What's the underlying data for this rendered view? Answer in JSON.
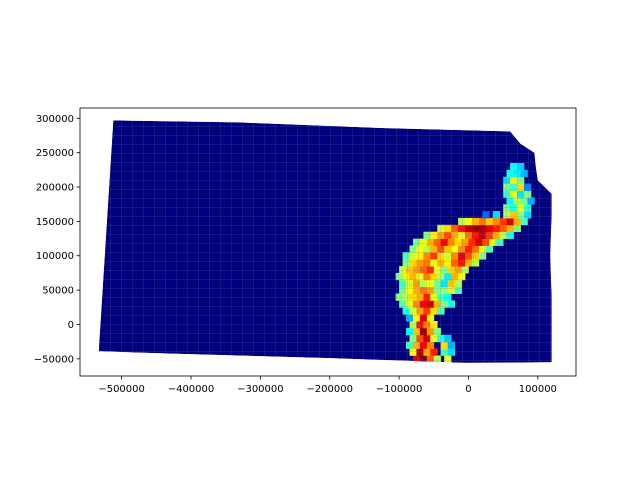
{
  "chart_data": {
    "type": "heatmap",
    "subject": "choropleth map of a state subdivided into a fine grid of polygons",
    "x_ticks": [
      "−500000",
      "−400000",
      "−300000",
      "−200000",
      "−100000",
      "0",
      "100000"
    ],
    "y_ticks": [
      "300000",
      "250000",
      "200000",
      "150000",
      "100000",
      "50000",
      "0",
      "−50000"
    ],
    "x_tick_values": [
      -500000,
      -400000,
      -300000,
      -200000,
      -100000,
      0,
      100000
    ],
    "y_tick_values": [
      300000,
      250000,
      200000,
      150000,
      100000,
      50000,
      0,
      -50000
    ],
    "xlim": [
      -560000,
      155000
    ],
    "ylim": [
      -75000,
      315000
    ],
    "colormap": "jet",
    "background_color": "#00007f",
    "boundary_color": "#6a6fc4",
    "outline": [
      [
        -512000,
        297000
      ],
      [
        -330000,
        294000
      ],
      [
        -130000,
        286000
      ],
      [
        60000,
        281000
      ],
      [
        75000,
        263000
      ],
      [
        95000,
        250000
      ],
      [
        97000,
        230000
      ],
      [
        100000,
        210000
      ],
      [
        120000,
        190000
      ],
      [
        120000,
        160000
      ],
      [
        118000,
        100000
      ],
      [
        120000,
        40000
      ],
      [
        120000,
        -55000
      ],
      [
        -5000,
        -56000
      ],
      [
        -200000,
        -49000
      ],
      [
        -410000,
        -43000
      ],
      [
        -533000,
        -39000
      ]
    ],
    "hot_cells": [
      {
        "x": -75000,
        "y": -50000,
        "v": 0.9
      },
      {
        "x": -65000,
        "y": -50000,
        "v": 1.0
      },
      {
        "x": -55000,
        "y": -50000,
        "v": 0.78
      },
      {
        "x": -45000,
        "y": -50000,
        "v": 0.55
      },
      {
        "x": -30000,
        "y": -50000,
        "v": 0.6
      },
      {
        "x": -80000,
        "y": -40000,
        "v": 0.62
      },
      {
        "x": -70000,
        "y": -40000,
        "v": 0.95
      },
      {
        "x": -60000,
        "y": -40000,
        "v": 0.7
      },
      {
        "x": -50000,
        "y": -40000,
        "v": 0.85
      },
      {
        "x": -35000,
        "y": -40000,
        "v": 0.45
      },
      {
        "x": -25000,
        "y": -40000,
        "v": 0.35
      },
      {
        "x": -85000,
        "y": -30000,
        "v": 0.45
      },
      {
        "x": -75000,
        "y": -30000,
        "v": 0.7
      },
      {
        "x": -65000,
        "y": -30000,
        "v": 0.88
      },
      {
        "x": -55000,
        "y": -30000,
        "v": 0.74
      },
      {
        "x": -35000,
        "y": -30000,
        "v": 0.66
      },
      {
        "x": -25000,
        "y": -30000,
        "v": 0.3
      },
      {
        "x": -80000,
        "y": -20000,
        "v": 0.5
      },
      {
        "x": -70000,
        "y": -20000,
        "v": 0.8
      },
      {
        "x": -60000,
        "y": -20000,
        "v": 0.92
      },
      {
        "x": -50000,
        "y": -20000,
        "v": 0.6
      },
      {
        "x": -40000,
        "y": -20000,
        "v": 0.4
      },
      {
        "x": -30000,
        "y": -20000,
        "v": 0.32
      },
      {
        "x": -85000,
        "y": -10000,
        "v": 0.38
      },
      {
        "x": -75000,
        "y": -10000,
        "v": 0.68
      },
      {
        "x": -65000,
        "y": -10000,
        "v": 0.97
      },
      {
        "x": -55000,
        "y": -10000,
        "v": 0.72
      },
      {
        "x": -45000,
        "y": -10000,
        "v": 0.5
      },
      {
        "x": -80000,
        "y": 0,
        "v": 0.55
      },
      {
        "x": -70000,
        "y": 0,
        "v": 0.86
      },
      {
        "x": -60000,
        "y": 0,
        "v": 0.75
      },
      {
        "x": -50000,
        "y": 0,
        "v": 0.64
      },
      {
        "x": -85000,
        "y": 10000,
        "v": 0.3
      },
      {
        "x": -75000,
        "y": 10000,
        "v": 0.62
      },
      {
        "x": -65000,
        "y": 10000,
        "v": 0.9
      },
      {
        "x": -55000,
        "y": 10000,
        "v": 0.6
      },
      {
        "x": -90000,
        "y": 20000,
        "v": 0.4
      },
      {
        "x": -80000,
        "y": 20000,
        "v": 0.58
      },
      {
        "x": -70000,
        "y": 20000,
        "v": 0.72
      },
      {
        "x": -60000,
        "y": 20000,
        "v": 0.82
      },
      {
        "x": -50000,
        "y": 20000,
        "v": 0.66
      },
      {
        "x": -40000,
        "y": 20000,
        "v": 0.45
      },
      {
        "x": -95000,
        "y": 30000,
        "v": 0.45
      },
      {
        "x": -85000,
        "y": 30000,
        "v": 0.6
      },
      {
        "x": -75000,
        "y": 30000,
        "v": 0.74
      },
      {
        "x": -65000,
        "y": 30000,
        "v": 0.88
      },
      {
        "x": -55000,
        "y": 30000,
        "v": 0.92
      },
      {
        "x": -45000,
        "y": 30000,
        "v": 0.7
      },
      {
        "x": -35000,
        "y": 30000,
        "v": 0.5
      },
      {
        "x": -25000,
        "y": 30000,
        "v": 0.4
      },
      {
        "x": -100000,
        "y": 40000,
        "v": 0.5
      },
      {
        "x": -90000,
        "y": 40000,
        "v": 0.55
      },
      {
        "x": -80000,
        "y": 40000,
        "v": 0.66
      },
      {
        "x": -70000,
        "y": 40000,
        "v": 0.7
      },
      {
        "x": -60000,
        "y": 40000,
        "v": 0.85
      },
      {
        "x": -50000,
        "y": 40000,
        "v": 0.6
      },
      {
        "x": -40000,
        "y": 40000,
        "v": 0.44
      },
      {
        "x": -30000,
        "y": 40000,
        "v": 0.38
      },
      {
        "x": -95000,
        "y": 50000,
        "v": 0.48
      },
      {
        "x": -85000,
        "y": 50000,
        "v": 0.62
      },
      {
        "x": -75000,
        "y": 50000,
        "v": 0.7
      },
      {
        "x": -65000,
        "y": 50000,
        "v": 0.76
      },
      {
        "x": -55000,
        "y": 50000,
        "v": 0.72
      },
      {
        "x": -45000,
        "y": 50000,
        "v": 0.5
      },
      {
        "x": -35000,
        "y": 50000,
        "v": 0.52
      },
      {
        "x": -25000,
        "y": 50000,
        "v": 0.6
      },
      {
        "x": -15000,
        "y": 50000,
        "v": 0.45
      },
      {
        "x": -95000,
        "y": 60000,
        "v": 0.44
      },
      {
        "x": -85000,
        "y": 60000,
        "v": 0.58
      },
      {
        "x": -75000,
        "y": 60000,
        "v": 0.72
      },
      {
        "x": -65000,
        "y": 60000,
        "v": 0.55
      },
      {
        "x": -55000,
        "y": 60000,
        "v": 0.62
      },
      {
        "x": -45000,
        "y": 60000,
        "v": 0.48
      },
      {
        "x": -35000,
        "y": 60000,
        "v": 0.35
      },
      {
        "x": -25000,
        "y": 60000,
        "v": 0.68
      },
      {
        "x": -15000,
        "y": 60000,
        "v": 0.54
      },
      {
        "x": -100000,
        "y": 70000,
        "v": 0.5
      },
      {
        "x": -90000,
        "y": 70000,
        "v": 0.64
      },
      {
        "x": -80000,
        "y": 70000,
        "v": 0.7
      },
      {
        "x": -70000,
        "y": 70000,
        "v": 0.6
      },
      {
        "x": -60000,
        "y": 70000,
        "v": 0.75
      },
      {
        "x": -50000,
        "y": 70000,
        "v": 0.66
      },
      {
        "x": -40000,
        "y": 70000,
        "v": 0.55
      },
      {
        "x": -30000,
        "y": 70000,
        "v": 0.36
      },
      {
        "x": -20000,
        "y": 70000,
        "v": 0.7
      },
      {
        "x": -10000,
        "y": 70000,
        "v": 0.62
      },
      {
        "x": -95000,
        "y": 80000,
        "v": 0.56
      },
      {
        "x": -85000,
        "y": 80000,
        "v": 0.68
      },
      {
        "x": -75000,
        "y": 80000,
        "v": 0.72
      },
      {
        "x": -65000,
        "y": 80000,
        "v": 0.78
      },
      {
        "x": -55000,
        "y": 80000,
        "v": 0.84
      },
      {
        "x": -45000,
        "y": 80000,
        "v": 0.62
      },
      {
        "x": -35000,
        "y": 80000,
        "v": 0.5
      },
      {
        "x": -25000,
        "y": 80000,
        "v": 0.66
      },
      {
        "x": -15000,
        "y": 80000,
        "v": 0.72
      },
      {
        "x": -5000,
        "y": 80000,
        "v": 0.55
      },
      {
        "x": -90000,
        "y": 90000,
        "v": 0.5
      },
      {
        "x": -80000,
        "y": 90000,
        "v": 0.66
      },
      {
        "x": -70000,
        "y": 90000,
        "v": 0.72
      },
      {
        "x": -60000,
        "y": 90000,
        "v": 0.76
      },
      {
        "x": -50000,
        "y": 90000,
        "v": 0.6
      },
      {
        "x": -40000,
        "y": 90000,
        "v": 0.7
      },
      {
        "x": -30000,
        "y": 90000,
        "v": 0.64
      },
      {
        "x": -20000,
        "y": 90000,
        "v": 0.78
      },
      {
        "x": -10000,
        "y": 90000,
        "v": 0.86
      },
      {
        "x": 0,
        "y": 90000,
        "v": 0.7
      },
      {
        "x": 10000,
        "y": 90000,
        "v": 0.55
      },
      {
        "x": -90000,
        "y": 100000,
        "v": 0.45
      },
      {
        "x": -80000,
        "y": 100000,
        "v": 0.58
      },
      {
        "x": -70000,
        "y": 100000,
        "v": 0.64
      },
      {
        "x": -60000,
        "y": 100000,
        "v": 0.74
      },
      {
        "x": -50000,
        "y": 100000,
        "v": 0.82
      },
      {
        "x": -40000,
        "y": 100000,
        "v": 0.66
      },
      {
        "x": -30000,
        "y": 100000,
        "v": 0.58
      },
      {
        "x": -20000,
        "y": 100000,
        "v": 0.74
      },
      {
        "x": -10000,
        "y": 100000,
        "v": 0.9
      },
      {
        "x": 0,
        "y": 100000,
        "v": 0.8
      },
      {
        "x": 10000,
        "y": 100000,
        "v": 0.68
      },
      {
        "x": 20000,
        "y": 100000,
        "v": 0.5
      },
      {
        "x": -80000,
        "y": 110000,
        "v": 0.5
      },
      {
        "x": -70000,
        "y": 110000,
        "v": 0.62
      },
      {
        "x": -60000,
        "y": 110000,
        "v": 0.55
      },
      {
        "x": -50000,
        "y": 110000,
        "v": 0.7
      },
      {
        "x": -40000,
        "y": 110000,
        "v": 0.8
      },
      {
        "x": -30000,
        "y": 110000,
        "v": 0.68
      },
      {
        "x": -20000,
        "y": 110000,
        "v": 0.6
      },
      {
        "x": -10000,
        "y": 110000,
        "v": 0.74
      },
      {
        "x": 0,
        "y": 110000,
        "v": 0.85
      },
      {
        "x": 10000,
        "y": 110000,
        "v": 0.76
      },
      {
        "x": 20000,
        "y": 110000,
        "v": 0.62
      },
      {
        "x": 30000,
        "y": 110000,
        "v": 0.45
      },
      {
        "x": -75000,
        "y": 120000,
        "v": 0.48
      },
      {
        "x": -65000,
        "y": 120000,
        "v": 0.6
      },
      {
        "x": -55000,
        "y": 120000,
        "v": 0.7
      },
      {
        "x": -45000,
        "y": 120000,
        "v": 0.78
      },
      {
        "x": -35000,
        "y": 120000,
        "v": 0.88
      },
      {
        "x": -25000,
        "y": 120000,
        "v": 0.74
      },
      {
        "x": -15000,
        "y": 120000,
        "v": 0.66
      },
      {
        "x": -5000,
        "y": 120000,
        "v": 0.72
      },
      {
        "x": 5000,
        "y": 120000,
        "v": 0.84
      },
      {
        "x": 15000,
        "y": 120000,
        "v": 0.92
      },
      {
        "x": 25000,
        "y": 120000,
        "v": 0.8
      },
      {
        "x": 35000,
        "y": 120000,
        "v": 0.6
      },
      {
        "x": 45000,
        "y": 120000,
        "v": 0.44
      },
      {
        "x": -60000,
        "y": 130000,
        "v": 0.5
      },
      {
        "x": -50000,
        "y": 130000,
        "v": 0.64
      },
      {
        "x": -40000,
        "y": 130000,
        "v": 0.72
      },
      {
        "x": -30000,
        "y": 130000,
        "v": 0.8
      },
      {
        "x": -20000,
        "y": 130000,
        "v": 0.7
      },
      {
        "x": -10000,
        "y": 130000,
        "v": 0.62
      },
      {
        "x": 0,
        "y": 130000,
        "v": 0.76
      },
      {
        "x": 10000,
        "y": 130000,
        "v": 0.86
      },
      {
        "x": 20000,
        "y": 130000,
        "v": 0.94
      },
      {
        "x": 30000,
        "y": 130000,
        "v": 0.82
      },
      {
        "x": 40000,
        "y": 130000,
        "v": 0.7
      },
      {
        "x": 50000,
        "y": 130000,
        "v": 0.56
      },
      {
        "x": 60000,
        "y": 130000,
        "v": 0.4
      },
      {
        "x": -40000,
        "y": 140000,
        "v": 0.58
      },
      {
        "x": -30000,
        "y": 140000,
        "v": 0.66
      },
      {
        "x": -20000,
        "y": 140000,
        "v": 0.78
      },
      {
        "x": -10000,
        "y": 140000,
        "v": 0.86
      },
      {
        "x": 0,
        "y": 140000,
        "v": 0.94
      },
      {
        "x": 10000,
        "y": 140000,
        "v": 0.98
      },
      {
        "x": 20000,
        "y": 140000,
        "v": 0.96
      },
      {
        "x": 30000,
        "y": 140000,
        "v": 0.9
      },
      {
        "x": 40000,
        "y": 140000,
        "v": 0.85
      },
      {
        "x": 50000,
        "y": 140000,
        "v": 0.78
      },
      {
        "x": 60000,
        "y": 140000,
        "v": 0.7
      },
      {
        "x": 70000,
        "y": 140000,
        "v": 0.5
      },
      {
        "x": -10000,
        "y": 150000,
        "v": 0.55
      },
      {
        "x": 0,
        "y": 150000,
        "v": 0.62
      },
      {
        "x": 10000,
        "y": 150000,
        "v": 0.7
      },
      {
        "x": 20000,
        "y": 150000,
        "v": 0.76
      },
      {
        "x": 30000,
        "y": 150000,
        "v": 0.68
      },
      {
        "x": 40000,
        "y": 150000,
        "v": 0.74
      },
      {
        "x": 50000,
        "y": 150000,
        "v": 0.82
      },
      {
        "x": 60000,
        "y": 150000,
        "v": 0.9
      },
      {
        "x": 70000,
        "y": 150000,
        "v": 0.7
      },
      {
        "x": 80000,
        "y": 150000,
        "v": 0.45
      },
      {
        "x": 25000,
        "y": 160000,
        "v": 0.22
      },
      {
        "x": 40000,
        "y": 160000,
        "v": 0.35
      },
      {
        "x": 55000,
        "y": 160000,
        "v": 0.55
      },
      {
        "x": 65000,
        "y": 160000,
        "v": 0.68
      },
      {
        "x": 75000,
        "y": 160000,
        "v": 0.5
      },
      {
        "x": 85000,
        "y": 160000,
        "v": 0.35
      },
      {
        "x": 55000,
        "y": 170000,
        "v": 0.5
      },
      {
        "x": 65000,
        "y": 170000,
        "v": 0.4
      },
      {
        "x": 75000,
        "y": 170000,
        "v": 0.62
      },
      {
        "x": 85000,
        "y": 170000,
        "v": 0.42
      },
      {
        "x": 60000,
        "y": 180000,
        "v": 0.38
      },
      {
        "x": 70000,
        "y": 180000,
        "v": 0.55
      },
      {
        "x": 80000,
        "y": 180000,
        "v": 0.48
      },
      {
        "x": 90000,
        "y": 180000,
        "v": 0.3
      },
      {
        "x": 55000,
        "y": 190000,
        "v": 0.42
      },
      {
        "x": 65000,
        "y": 190000,
        "v": 0.6
      },
      {
        "x": 75000,
        "y": 190000,
        "v": 0.35
      },
      {
        "x": 85000,
        "y": 190000,
        "v": 0.5
      },
      {
        "x": 55000,
        "y": 200000,
        "v": 0.5
      },
      {
        "x": 65000,
        "y": 200000,
        "v": 0.44
      },
      {
        "x": 75000,
        "y": 200000,
        "v": 0.66
      },
      {
        "x": 85000,
        "y": 200000,
        "v": 0.25
      },
      {
        "x": 55000,
        "y": 210000,
        "v": 0.35
      },
      {
        "x": 65000,
        "y": 210000,
        "v": 0.62
      },
      {
        "x": 75000,
        "y": 210000,
        "v": 0.5
      },
      {
        "x": 60000,
        "y": 220000,
        "v": 0.4
      },
      {
        "x": 70000,
        "y": 220000,
        "v": 0.36
      },
      {
        "x": 80000,
        "y": 220000,
        "v": 0.3
      },
      {
        "x": 65000,
        "y": 230000,
        "v": 0.38
      },
      {
        "x": 75000,
        "y": 230000,
        "v": 0.33
      }
    ]
  }
}
